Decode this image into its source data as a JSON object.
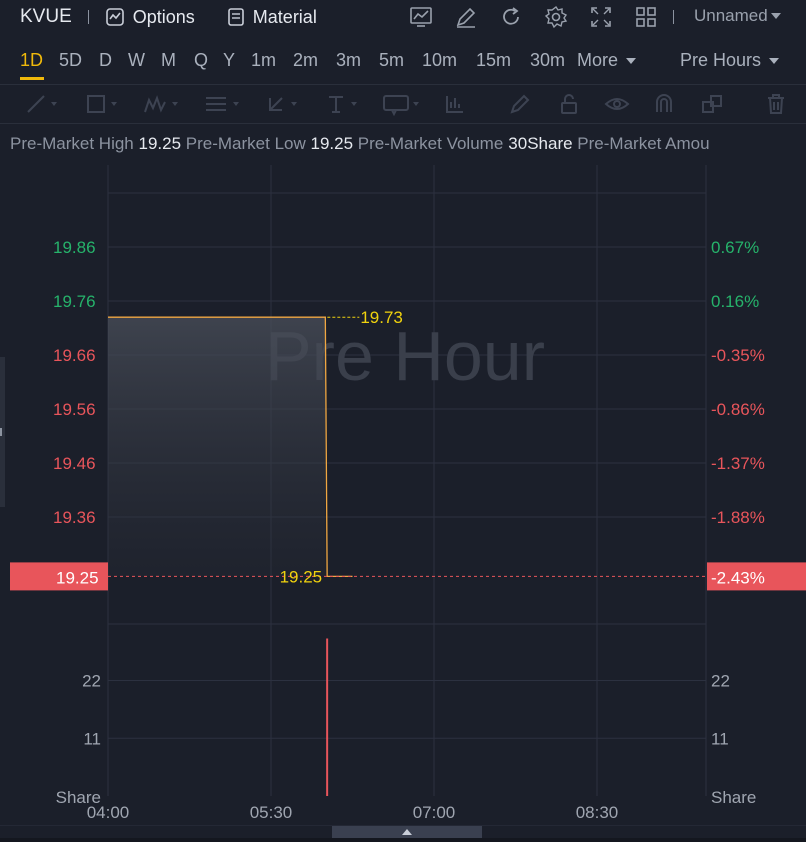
{
  "header": {
    "symbol": "KVUE",
    "options_label": "Options",
    "material_label": "Material",
    "layout_name": "Unnamed",
    "icons": [
      "indicator-icon",
      "draw-icon",
      "refresh-icon",
      "settings-icon",
      "fullscreen-icon",
      "layout-grid-icon"
    ]
  },
  "periods": {
    "items": [
      "1D",
      "5D",
      "D",
      "W",
      "M",
      "Q",
      "Y",
      "1m",
      "2m",
      "3m",
      "5m",
      "10m",
      "15m",
      "30m"
    ],
    "more_label": "More",
    "active": "1D",
    "session_label": "Pre Hours"
  },
  "toolbar": {
    "icons": [
      "trend-line-icon",
      "rectangle-icon",
      "pattern-icon",
      "fib-icon",
      "arrow-icon",
      "text-icon",
      "label-icon",
      "measure-icon",
      "pen-icon",
      "lock-icon",
      "eye-icon",
      "magnet-icon",
      "layers-icon",
      "trash-icon"
    ]
  },
  "info": {
    "high_label": "Pre-Market High",
    "high_value": "19.25",
    "low_label": "Pre-Market Low",
    "low_value": "19.25",
    "volume_label": "Pre-Market Volume",
    "volume_value": "30Share",
    "amount_label": "Pre-Market Amou"
  },
  "chart_data": {
    "type": "line",
    "watermark": "Pre Hour",
    "x_ticks": [
      "04:00",
      "05:30",
      "07:00",
      "08:30"
    ],
    "price_axis_left": [
      "19.86",
      "19.76",
      "19.66",
      "19.56",
      "19.46",
      "19.36"
    ],
    "price_axis_right": [
      "0.67%",
      "0.16%",
      "-0.35%",
      "-0.86%",
      "-1.37%",
      "-1.88%"
    ],
    "reference_price": 19.25,
    "reference_price_label": "19.25",
    "reference_pct_label": "-2.43%",
    "price_series": [
      {
        "time": "04:00",
        "price": 19.73
      },
      {
        "time": "06:00",
        "price": 19.73
      },
      {
        "time": "06:01",
        "price": 19.25
      },
      {
        "time": "06:15",
        "price": 19.25
      }
    ],
    "annotations": [
      {
        "label": "19.73",
        "time": "06:00",
        "price": 19.73
      },
      {
        "label": "19.25",
        "time": "06:01",
        "price": 19.25
      }
    ],
    "volume_axis_ticks": [
      "22",
      "11"
    ],
    "volume_unit_label": "Share",
    "volume_bars": [
      {
        "time": "06:01",
        "volume": 30
      }
    ],
    "colors": {
      "up": "#26b36b",
      "down": "#e8555b",
      "line": "#f0a742",
      "label": "#f0d20e",
      "background": "#1b1f2a",
      "grid": "#2c3140"
    }
  }
}
